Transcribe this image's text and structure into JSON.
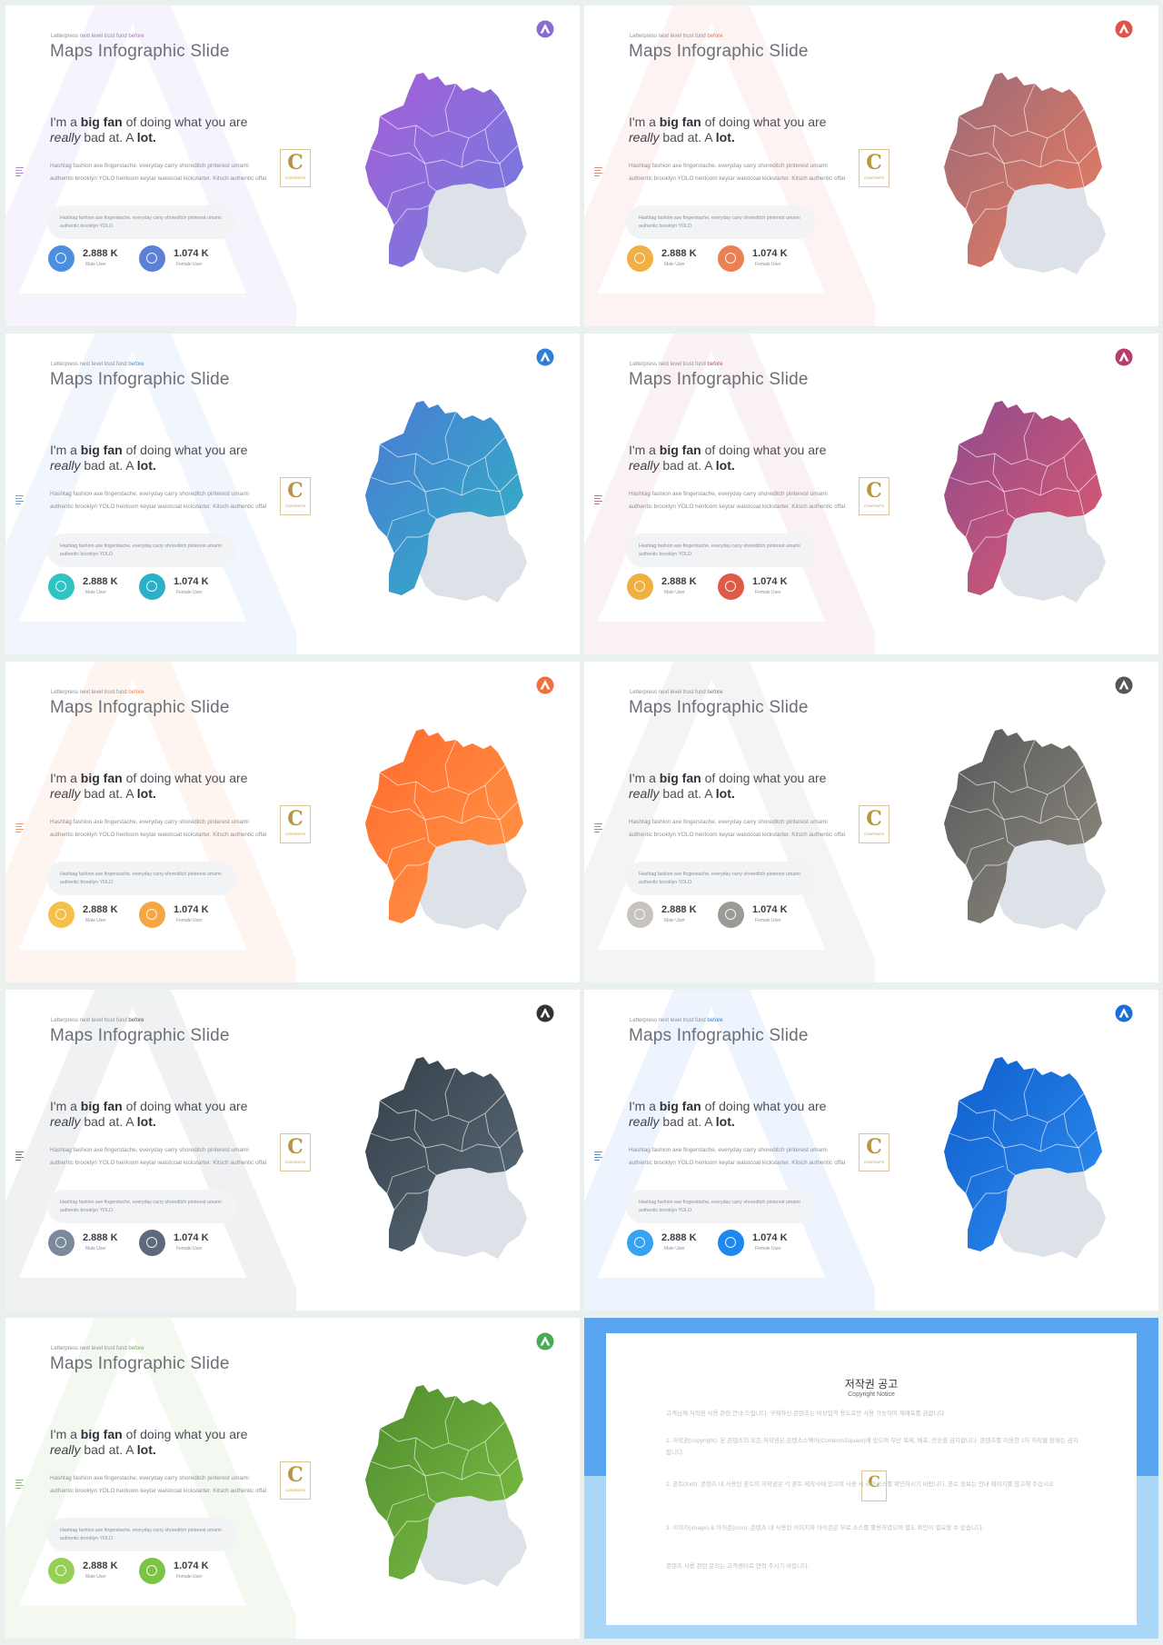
{
  "slide_template": {
    "kicker_text": "Letterpress next level trust fund ",
    "kicker_highlight": "before",
    "title": "Maps Infographic Slide",
    "heading_pre": "I'm a ",
    "heading_bold1": "big fan",
    "heading_mid": " of doing what you are",
    "heading_italic": "really",
    "heading_post": " bad at. A ",
    "heading_bold2": "lot.",
    "body": "Hashtag fashion axe fingerstache, everyday carry shoreditch pinterest umami authentic brooklyn YOLO heirloom keytar waistcoat kickstarter. Kitsch authentic offal",
    "pill": "Hashtag fashion axe fingerstache, everyday carry shoreditch pinterest umami authentic brooklyn YOLO.",
    "badge_letter": "C",
    "badge_text": "CONTENTS",
    "stat1_value": "2.888 K",
    "stat1_label": "Male User",
    "stat2_value": "1.074 K",
    "stat2_label": "Female User"
  },
  "slides": [
    {
      "theme": "violet",
      "accent": "#9c6ad8",
      "map_from": "#a55fd6",
      "map_to": "#6f7de0",
      "stat1_color": "#4a8fe0",
      "stat2_color": "#5c7fd8",
      "logo_color": "#8a6bd0"
    },
    {
      "theme": "coral",
      "accent": "#e06c57",
      "map_from": "#9a6a78",
      "map_to": "#ee7d5f",
      "stat1_color": "#f0b045",
      "stat2_color": "#ec8055",
      "logo_color": "#e0524a"
    },
    {
      "theme": "teal-blue",
      "accent": "#3a8cd4",
      "map_from": "#4a7ad4",
      "map_to": "#30b5c4",
      "stat1_color": "#2ec4c4",
      "stat2_color": "#2ab0c8",
      "logo_color": "#2f7fd6"
    },
    {
      "theme": "berry",
      "accent": "#c0486e",
      "map_from": "#8e4b8e",
      "map_to": "#e25a6e",
      "stat1_color": "#f0b040",
      "stat2_color": "#e05a48",
      "logo_color": "#b83c6a"
    },
    {
      "theme": "orange",
      "accent": "#ff7a3a",
      "map_from": "#ff6a2c",
      "map_to": "#ff9a4a",
      "stat1_color": "#f5c04a",
      "stat2_color": "#f5a640",
      "logo_color": "#f0703a"
    },
    {
      "theme": "grey",
      "accent": "#777",
      "map_from": "#55585a",
      "map_to": "#938c80",
      "stat1_color": "#c6c4bc",
      "stat2_color": "#9c9a94",
      "logo_color": "#555"
    },
    {
      "theme": "slate",
      "accent": "#45525e",
      "map_from": "#333e48",
      "map_to": "#5e6e7c",
      "stat1_color": "#7a8a9a",
      "stat2_color": "#5c6a7a",
      "logo_color": "#333"
    },
    {
      "theme": "blue",
      "accent": "#1e78e0",
      "map_from": "#0f5dcc",
      "map_to": "#2e8ff0",
      "stat1_color": "#35a2f2",
      "stat2_color": "#1e88f0",
      "logo_color": "#1a6fd8"
    },
    {
      "theme": "green",
      "accent": "#68b23a",
      "map_from": "#4f8c2e",
      "map_to": "#7fc045",
      "stat1_color": "#95d055",
      "stat2_color": "#7cc444",
      "logo_color": "#4aaa55"
    }
  ],
  "notice": {
    "title": "저작권 공고",
    "subtitle": "Copyright Notice",
    "para1": "고객님께 저작권 사용 관련 안내 드립니다. 구매하신 콘텐츠는 비상업적 용도로만 사용 가능하며 재배포를 금합니다.",
    "para2": "1. 저작권(copyright): 본 콘텐츠의 모든 저작권은 콘텐츠스퀘어(ContentsSquare)에 있으며 무단 복제, 배포, 전송을 금지합니다. 콘텐츠를 이용한 2차 저작물 판매는 금지됩니다.",
    "para3": "2. 폰트(font): 콘텐츠 내 사용된 폰트의 저작권은 각 폰트 제작사에 있으며 사용 시 라이선스를 확인하시기 바랍니다. 폰트 정보는 안내 페이지를 참고해 주십시오.",
    "para4": "3. 이미지(image) & 아이콘(icon): 콘텐츠 내 사용된 이미지와 아이콘은 무료 소스를 활용하였으며 별도 확인이 필요할 수 있습니다.",
    "para5": "콘텐츠 사용 관련 문의는 고객센터로 연락 주시기 바랍니다.",
    "badge_letter": "C"
  }
}
